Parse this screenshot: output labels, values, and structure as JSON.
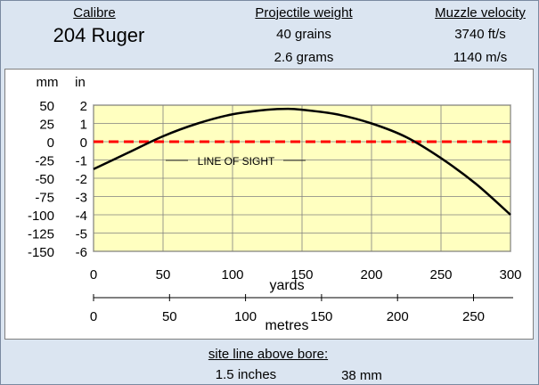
{
  "header": {
    "calibre_label": "Calibre",
    "calibre_value": "204 Ruger",
    "weight_label": "Projectile weight",
    "weight_grains": "40 grains",
    "weight_grams": "2.6 grams",
    "velocity_label": "Muzzle velocity",
    "velocity_fps": "3740 ft/s",
    "velocity_ms": "1140 m/s"
  },
  "footer": {
    "site_line_label": "site line above bore:",
    "site_line_inches": "1.5 inches",
    "site_line_mm": "38 mm"
  },
  "colors": {
    "plot_bg": "#ffffc0",
    "trajectory": "#000000",
    "line_of_sight": "#ff0000",
    "grid": "#808080"
  },
  "chart_data": {
    "type": "line",
    "annotation": "LINE OF SIGHT",
    "y_unit_mm": "mm",
    "y_unit_in": "in",
    "xlabel_yards": "yards",
    "xlabel_metres": "metres",
    "x_yards_range": [
      0,
      300
    ],
    "x_yards_ticks": [
      "0",
      "50",
      "100",
      "150",
      "200",
      "250",
      "300"
    ],
    "x_metres_ticks": [
      "0",
      "50",
      "100",
      "150",
      "200",
      "250"
    ],
    "x_metres_values": [
      0,
      50,
      100,
      150,
      200,
      250
    ],
    "y_in_range": [
      -6,
      2
    ],
    "y_in_ticks": [
      "2",
      "1",
      "0",
      "-1",
      "-2",
      "-3",
      "-4",
      "-5",
      "-6"
    ],
    "y_mm_ticks": [
      "50",
      "25",
      "0",
      "-25",
      "-50",
      "-75",
      "-100",
      "-125",
      "-150"
    ],
    "grid": true,
    "series": [
      {
        "x": [
          0,
          25,
          50,
          75,
          100,
          125,
          140,
          150,
          175,
          200,
          225,
          250,
          275,
          300
        ],
        "y": [
          -1.5,
          -0.6,
          0.3,
          1.0,
          1.5,
          1.75,
          1.8,
          1.75,
          1.5,
          1.0,
          0.25,
          -0.9,
          -2.3,
          -4.0
        ]
      },
      {
        "x": [
          0,
          300
        ],
        "y": [
          0,
          0
        ]
      }
    ]
  }
}
